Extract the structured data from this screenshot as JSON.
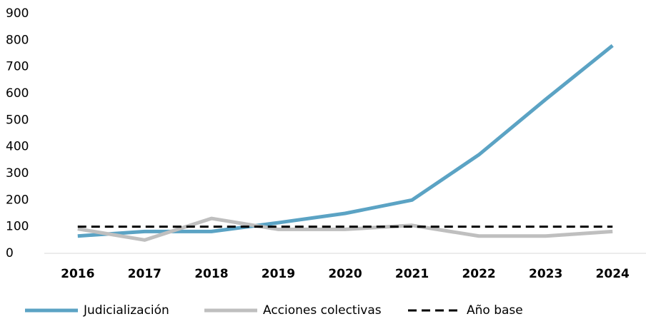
{
  "chart_data": {
    "type": "line",
    "categories": [
      "2016",
      "2017",
      "2018",
      "2019",
      "2020",
      "2021",
      "2022",
      "2023",
      "2024"
    ],
    "series": [
      {
        "name": "Judicialización",
        "color": "#5ba3c4",
        "values": [
          65,
          82,
          82,
          115,
          150,
          200,
          370,
          578,
          780
        ]
      },
      {
        "name": "Acciones colectivas",
        "color": "#bfbfbf",
        "values": [
          92,
          50,
          131,
          90,
          90,
          105,
          65,
          65,
          82
        ]
      },
      {
        "name": "Año base",
        "color": "#000000",
        "dashed": true,
        "values": [
          100,
          100,
          100,
          100,
          100,
          100,
          100,
          100,
          100
        ]
      }
    ],
    "ylim": [
      0,
      900
    ],
    "yticks": [
      0,
      100,
      200,
      300,
      400,
      500,
      600,
      700,
      800,
      900
    ],
    "grid": false,
    "legend": "bottom"
  }
}
